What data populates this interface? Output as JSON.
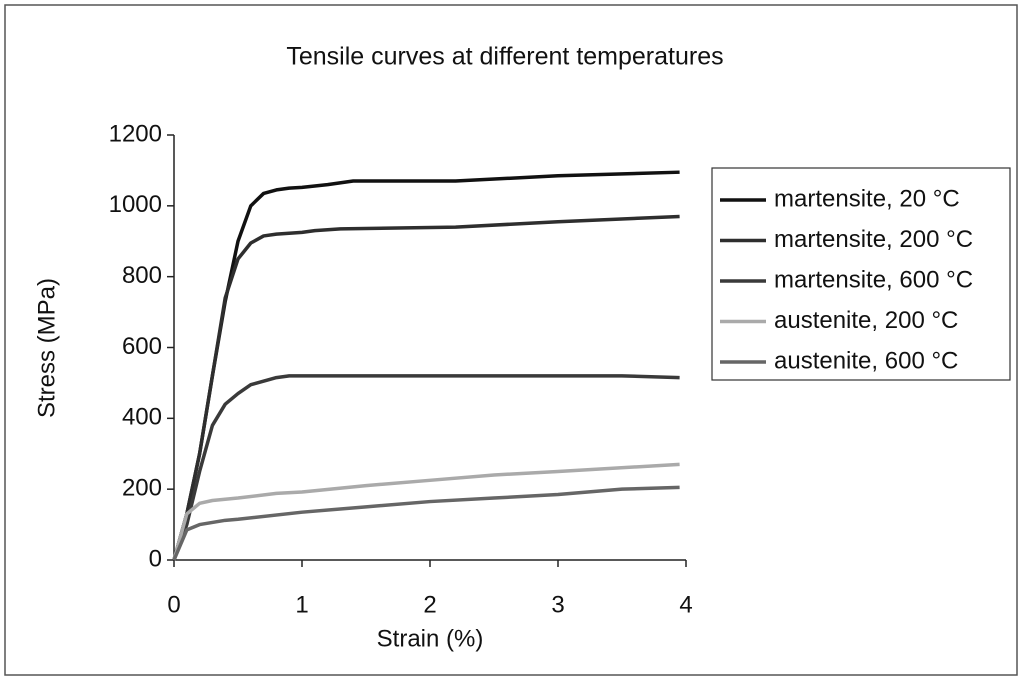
{
  "chart_data": {
    "type": "line",
    "title": "Tensile curves at different temperatures",
    "x_label": "Strain (%)",
    "y_label": "Stress (MPa)",
    "xlim": [
      0,
      4
    ],
    "xticks": [
      0,
      1,
      2,
      3,
      4
    ],
    "ylim": [
      0,
      1200
    ],
    "yticks": [
      0,
      200,
      400,
      600,
      800,
      1000,
      1200
    ],
    "grid": false,
    "legend": "right",
    "series": [
      {
        "name": "martensite, 20 °C",
        "color": "#111111",
        "x": [
          0,
          0.1,
          0.2,
          0.3,
          0.4,
          0.5,
          0.6,
          0.7,
          0.8,
          0.9,
          1.0,
          1.2,
          1.4,
          2.2,
          3.0,
          3.95
        ],
        "values": [
          0,
          130,
          300,
          520,
          730,
          900,
          1000,
          1035,
          1045,
          1050,
          1052,
          1060,
          1070,
          1070,
          1085,
          1095
        ]
      },
      {
        "name": "martensite, 200 °C",
        "color": "#2e2e2e",
        "x": [
          0,
          0.1,
          0.2,
          0.3,
          0.4,
          0.5,
          0.6,
          0.7,
          0.8,
          1.0,
          1.1,
          1.3,
          2.2,
          3.0,
          3.95
        ],
        "values": [
          0,
          130,
          300,
          520,
          740,
          850,
          895,
          915,
          920,
          925,
          930,
          935,
          940,
          955,
          970
        ]
      },
      {
        "name": "martensite, 600 °C",
        "color": "#3a3a3a",
        "x": [
          0,
          0.1,
          0.2,
          0.3,
          0.4,
          0.5,
          0.6,
          0.8,
          0.9,
          3.5,
          3.95
        ],
        "values": [
          0,
          100,
          250,
          380,
          440,
          470,
          495,
          515,
          520,
          520,
          515
        ]
      },
      {
        "name": "austenite, 200 °C",
        "color": "#aaaaaa",
        "x": [
          0,
          0.1,
          0.2,
          0.3,
          0.5,
          0.8,
          1.0,
          1.5,
          2.0,
          2.5,
          3.0,
          3.95
        ],
        "values": [
          0,
          130,
          160,
          168,
          175,
          188,
          192,
          210,
          225,
          240,
          250,
          270
        ]
      },
      {
        "name": "austenite, 600 °C",
        "color": "#666666",
        "x": [
          0,
          0.1,
          0.2,
          0.4,
          0.5,
          1.0,
          1.5,
          2.0,
          2.5,
          3.0,
          3.5,
          3.95
        ],
        "values": [
          0,
          85,
          100,
          112,
          115,
          135,
          150,
          165,
          175,
          185,
          200,
          205
        ]
      }
    ]
  }
}
